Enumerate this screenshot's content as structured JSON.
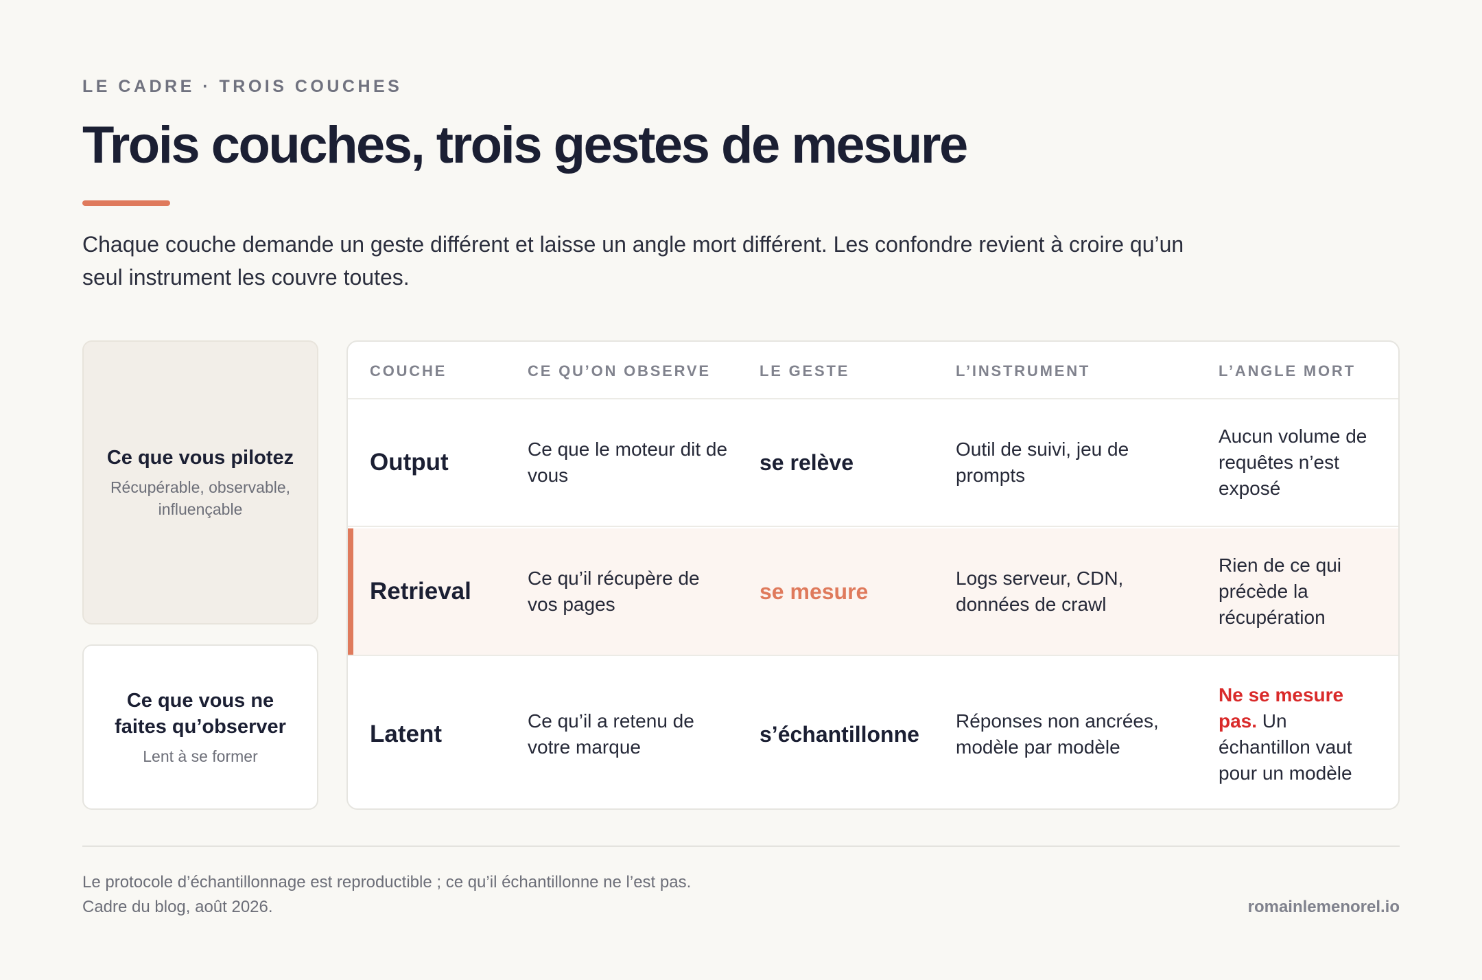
{
  "header": {
    "eyebrow": "LE CADRE · TROIS COUCHES",
    "title": "Trois couches, trois gestes de mesure",
    "intro": "Chaque couche demande un geste différent et laisse un angle mort différent. Les confondre revient à croire qu’un seul instrument les couvre toutes."
  },
  "side_cards": [
    {
      "title": "Ce que vous pilotez",
      "subtitle": "Récupérable, observable, influençable"
    },
    {
      "title": "Ce que vous ne faites qu’observer",
      "subtitle": "Lent à se former"
    }
  ],
  "table": {
    "columns": [
      "COUCHE",
      "CE QU’ON OBSERVE",
      "LE GESTE",
      "L’INSTRUMENT",
      "L’ANGLE MORT"
    ],
    "rows": [
      {
        "layer": "Output",
        "observed": "Ce que le moteur dit de vous",
        "gesture": "se relève",
        "instrument": "Outil de suivi, jeu de prompts",
        "blind_spot": "Aucun volume de requêtes n’est exposé"
      },
      {
        "layer": "Retrieval",
        "observed": "Ce qu’il récupère de vos pages",
        "gesture": "se mesure",
        "instrument": "Logs serveur, CDN, données de crawl",
        "blind_spot": "Rien de ce qui précède la récupération"
      },
      {
        "layer": "Latent",
        "observed": "Ce qu’il a retenu de votre marque",
        "gesture": "s’échantillonne",
        "instrument": "Réponses non ancrées, modèle par modèle",
        "blind_spot_strong": "Ne se mesure pas.",
        "blind_spot_rest": " Un échantillon vaut pour un modèle"
      }
    ]
  },
  "footer": {
    "note_line1": "Le protocole d’échantillonnage est reproductible ; ce qu’il échantillonne ne l’est pas.",
    "note_line2": "Cadre du blog, août 2026.",
    "site": "romainlemenorel.io"
  },
  "colors": {
    "accent": "#df7a5c",
    "highlight_row": "#fcf5f1",
    "warning_red": "#d92a2a",
    "background": "#f9f8f4"
  }
}
